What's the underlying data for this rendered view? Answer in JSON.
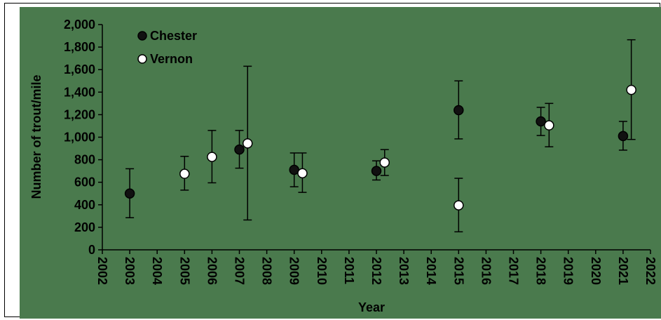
{
  "chart_data": {
    "type": "scatter",
    "title": "",
    "xlabel": "Year",
    "ylabel": "Number of trout/mile",
    "xlim": [
      2002,
      2022
    ],
    "ylim": [
      0,
      2000
    ],
    "x_ticks": [
      "2002",
      "2003",
      "2004",
      "2005",
      "2006",
      "2007",
      "2008",
      "2009",
      "2010",
      "2011",
      "2012",
      "2013",
      "2014",
      "2015",
      "2016",
      "2017",
      "2018",
      "2019",
      "2020",
      "2021",
      "2022"
    ],
    "y_ticks": [
      "0",
      "200",
      "400",
      "600",
      "800",
      "1,000",
      "1,200",
      "1,400",
      "1,600",
      "1,800",
      "2,000"
    ],
    "grid": false,
    "legend_position": "top-left",
    "series": [
      {
        "name": "Chester",
        "marker": "filled-circle",
        "color": "#111111",
        "points": [
          {
            "x": 2003,
            "y": 500,
            "err_low": 285,
            "err_high": 720
          },
          {
            "x": 2007,
            "y": 890,
            "err_low": 725,
            "err_high": 1060
          },
          {
            "x": 2009,
            "y": 710,
            "err_low": 560,
            "err_high": 860
          },
          {
            "x": 2012,
            "y": 700,
            "err_low": 620,
            "err_high": 790
          },
          {
            "x": 2015,
            "y": 1240,
            "err_low": 985,
            "err_high": 1500
          },
          {
            "x": 2018,
            "y": 1140,
            "err_low": 1015,
            "err_high": 1265
          },
          {
            "x": 2021,
            "y": 1010,
            "err_low": 885,
            "err_high": 1140
          }
        ]
      },
      {
        "name": "Vernon",
        "marker": "open-circle",
        "color": "#ffffff",
        "points": [
          {
            "x": 2005,
            "y": 675,
            "err_low": 530,
            "err_high": 830
          },
          {
            "x": 2006,
            "y": 825,
            "err_low": 595,
            "err_high": 1060
          },
          {
            "x": 2007.3,
            "y": 945,
            "err_low": 265,
            "err_high": 1630
          },
          {
            "x": 2009.3,
            "y": 680,
            "err_low": 510,
            "err_high": 860
          },
          {
            "x": 2012.3,
            "y": 775,
            "err_low": 660,
            "err_high": 890
          },
          {
            "x": 2015,
            "y": 395,
            "err_low": 160,
            "err_high": 635
          },
          {
            "x": 2018.3,
            "y": 1105,
            "err_low": 915,
            "err_high": 1300
          },
          {
            "x": 2021.3,
            "y": 1420,
            "err_low": 980,
            "err_high": 1865
          }
        ]
      }
    ]
  },
  "colors": {
    "plot_background": "#4a7a4d",
    "axis": "#000000"
  }
}
